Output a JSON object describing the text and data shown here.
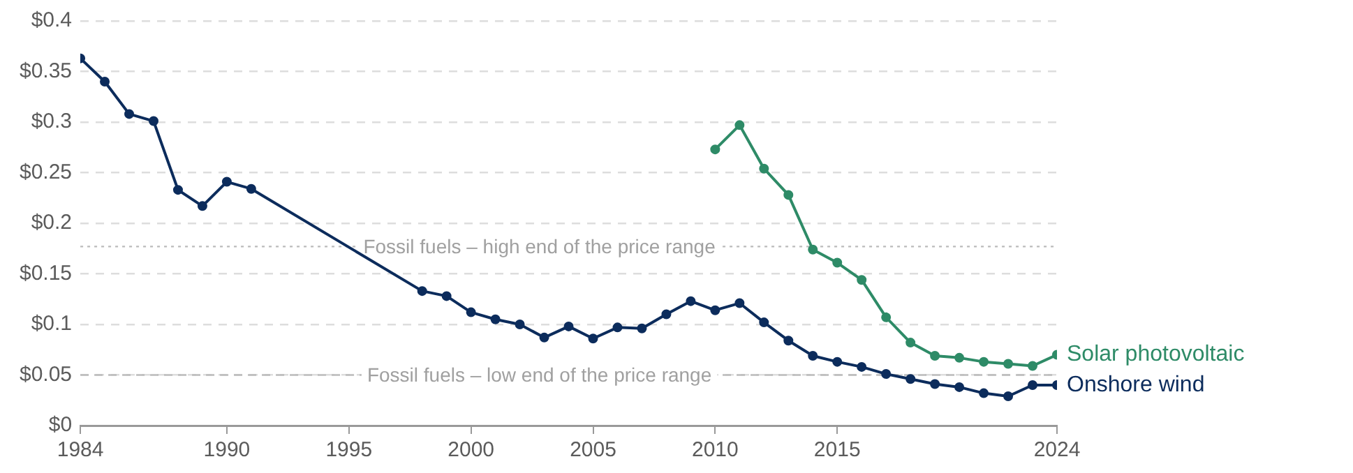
{
  "chart_data": {
    "type": "line",
    "xlim": [
      1984,
      2024
    ],
    "xticks": [
      1984,
      1990,
      1995,
      2000,
      2005,
      2010,
      2015,
      2024
    ],
    "ylim": [
      0,
      0.4
    ],
    "yticks": [
      {
        "value": 0,
        "label": "$0"
      },
      {
        "value": 0.05,
        "label": "$0.05"
      },
      {
        "value": 0.1,
        "label": "$0.1"
      },
      {
        "value": 0.15,
        "label": "$0.15"
      },
      {
        "value": 0.2,
        "label": "$0.2"
      },
      {
        "value": 0.25,
        "label": "$0.25"
      },
      {
        "value": 0.3,
        "label": "$0.3"
      },
      {
        "value": 0.35,
        "label": "$0.35"
      },
      {
        "value": 0.4,
        "label": "$0.4"
      }
    ],
    "grid": "y",
    "legend": false,
    "marker": "circle",
    "line_style": "solid",
    "series": [
      {
        "name": "Solar photovoltaic",
        "color": "#2e8b67",
        "x": [
          2010,
          2011,
          2012,
          2013,
          2014,
          2015,
          2016,
          2017,
          2018,
          2019,
          2020,
          2021,
          2022,
          2023,
          2024
        ],
        "values": [
          0.273,
          0.297,
          0.254,
          0.228,
          0.174,
          0.161,
          0.144,
          0.107,
          0.082,
          0.069,
          0.067,
          0.063,
          0.061,
          0.059,
          0.07
        ]
      },
      {
        "name": "Onshore wind",
        "color": "#0c2c5c",
        "x": [
          1984,
          1985,
          1986,
          1987,
          1988,
          1989,
          1990,
          1991,
          1998,
          1999,
          2000,
          2001,
          2002,
          2003,
          2004,
          2005,
          2006,
          2007,
          2008,
          2009,
          2010,
          2011,
          2012,
          2013,
          2014,
          2015,
          2016,
          2017,
          2018,
          2019,
          2020,
          2021,
          2022,
          2023,
          2024
        ],
        "values": [
          0.363,
          0.34,
          0.308,
          0.301,
          0.233,
          0.217,
          0.241,
          0.234,
          0.133,
          0.128,
          0.112,
          0.105,
          0.1,
          0.087,
          0.098,
          0.086,
          0.097,
          0.096,
          0.11,
          0.123,
          0.114,
          0.121,
          0.102,
          0.084,
          0.069,
          0.063,
          0.058,
          0.051,
          0.046,
          0.041,
          0.038,
          0.032,
          0.029,
          0.04,
          0.04
        ]
      }
    ],
    "ref_lines": [
      {
        "axis": "y",
        "value": 0.177,
        "label": "Fossil fuels – high end of the price range",
        "color": "#bbbbbb",
        "line_style": "dotted"
      },
      {
        "axis": "y",
        "value": 0.05,
        "label": "Fossil fuels – low end of the price range",
        "color": "#bbbbbb",
        "line_style": "dashed"
      }
    ]
  }
}
